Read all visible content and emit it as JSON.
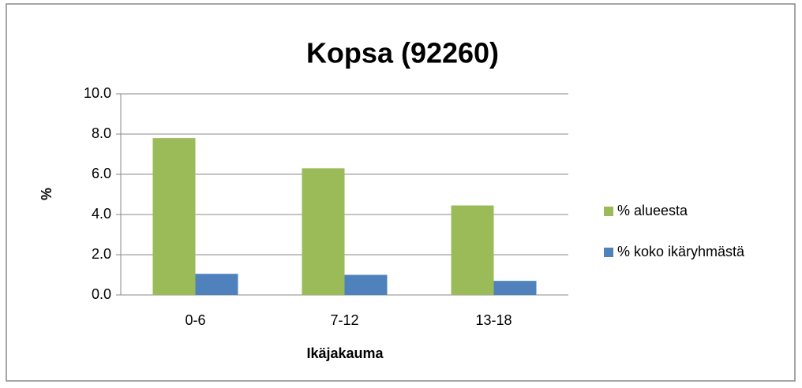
{
  "chart_data": {
    "type": "bar",
    "title": "Kopsa (92260)",
    "x_label": "Ikäjakauma",
    "y_label": "%",
    "categories": [
      "0-6",
      "7-12",
      "13-18"
    ],
    "series": [
      {
        "name": "% alueesta",
        "color": "#9bbb59",
        "values": [
          7.8,
          6.3,
          4.45
        ]
      },
      {
        "name": "% koko ikäryhmästä",
        "color": "#4f81bd",
        "values": [
          1.05,
          1.0,
          0.7
        ]
      }
    ],
    "ylim": [
      0,
      10
    ],
    "yticks": [
      {
        "value": 0,
        "label": "0.0"
      },
      {
        "value": 2,
        "label": "2.0"
      },
      {
        "value": 4,
        "label": "4.0"
      },
      {
        "value": 6,
        "label": "6.0"
      },
      {
        "value": 8,
        "label": "8.0"
      },
      {
        "value": 10,
        "label": "10.0"
      }
    ],
    "grid": true,
    "legend": "right"
  }
}
